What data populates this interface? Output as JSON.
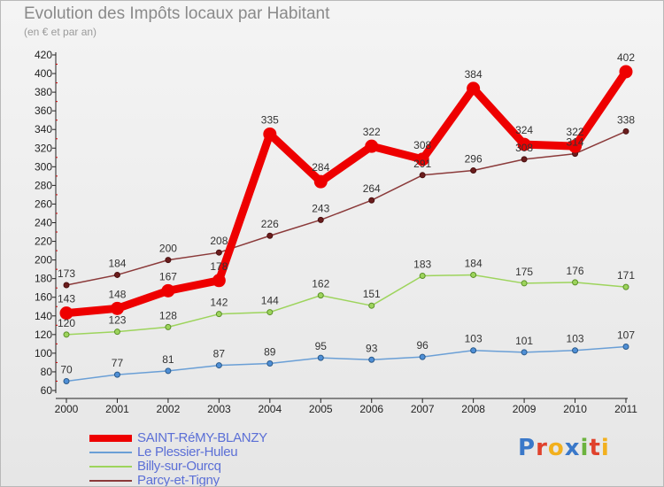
{
  "title": "Evolution des Impôts locaux par Habitant",
  "subtitle": "(en € et par an)",
  "brand": "Proxiti",
  "brand_colors": [
    "#3a78c9",
    "#e0422d",
    "#f2b01e",
    "#3a78c9",
    "#6cb33e",
    "#e0422d",
    "#f2b01e"
  ],
  "chart_data": {
    "type": "line",
    "x": [
      "2000",
      "2001",
      "2002",
      "2003",
      "2004",
      "2005",
      "2006",
      "2007",
      "2008",
      "2009",
      "2010",
      "2011"
    ],
    "ylim": [
      60,
      420
    ],
    "yticks": [
      60,
      80,
      100,
      120,
      140,
      160,
      180,
      200,
      220,
      240,
      260,
      280,
      300,
      320,
      340,
      360,
      380,
      400,
      420
    ],
    "grid": false,
    "legend_position": "bottom-left",
    "series": [
      {
        "name": "SAINT-RéMY-BLANZY",
        "color": "#ee0000",
        "labels": [
          "143",
          "148",
          "167",
          "178",
          "335",
          "284",
          "322",
          "308",
          "384",
          "324",
          "322",
          "402"
        ],
        "values": [
          143,
          148,
          167,
          178,
          335,
          284,
          322,
          308,
          384,
          324,
          322,
          402
        ]
      },
      {
        "name": "Le Plessier-Huleu",
        "color": "#6a9fd6",
        "labels": [
          "70",
          "77",
          "81",
          "87",
          "89",
          "95",
          "93",
          "96",
          "103",
          "101",
          "103",
          "107"
        ],
        "values": [
          70,
          77,
          81,
          87,
          89,
          95,
          93,
          96,
          103,
          101,
          103,
          107
        ]
      },
      {
        "name": "Billy-sur-Ourcq",
        "color": "#9dd45c",
        "labels": [
          "120",
          "123",
          "128",
          "142",
          "144",
          "162",
          "151",
          "183",
          "184",
          "175",
          "176",
          "171"
        ],
        "values": [
          120,
          123,
          128,
          142,
          144,
          162,
          151,
          183,
          184,
          175,
          176,
          171
        ]
      },
      {
        "name": "Parcy-et-Tigny",
        "color": "#8b3a3a",
        "labels": [
          "173",
          "184",
          "200",
          "208",
          "226",
          "243",
          "264",
          "291",
          "296",
          "308",
          "314",
          "338"
        ],
        "values": [
          173,
          184,
          200,
          208,
          226,
          243,
          264,
          291,
          296,
          308,
          314,
          338
        ]
      }
    ]
  }
}
